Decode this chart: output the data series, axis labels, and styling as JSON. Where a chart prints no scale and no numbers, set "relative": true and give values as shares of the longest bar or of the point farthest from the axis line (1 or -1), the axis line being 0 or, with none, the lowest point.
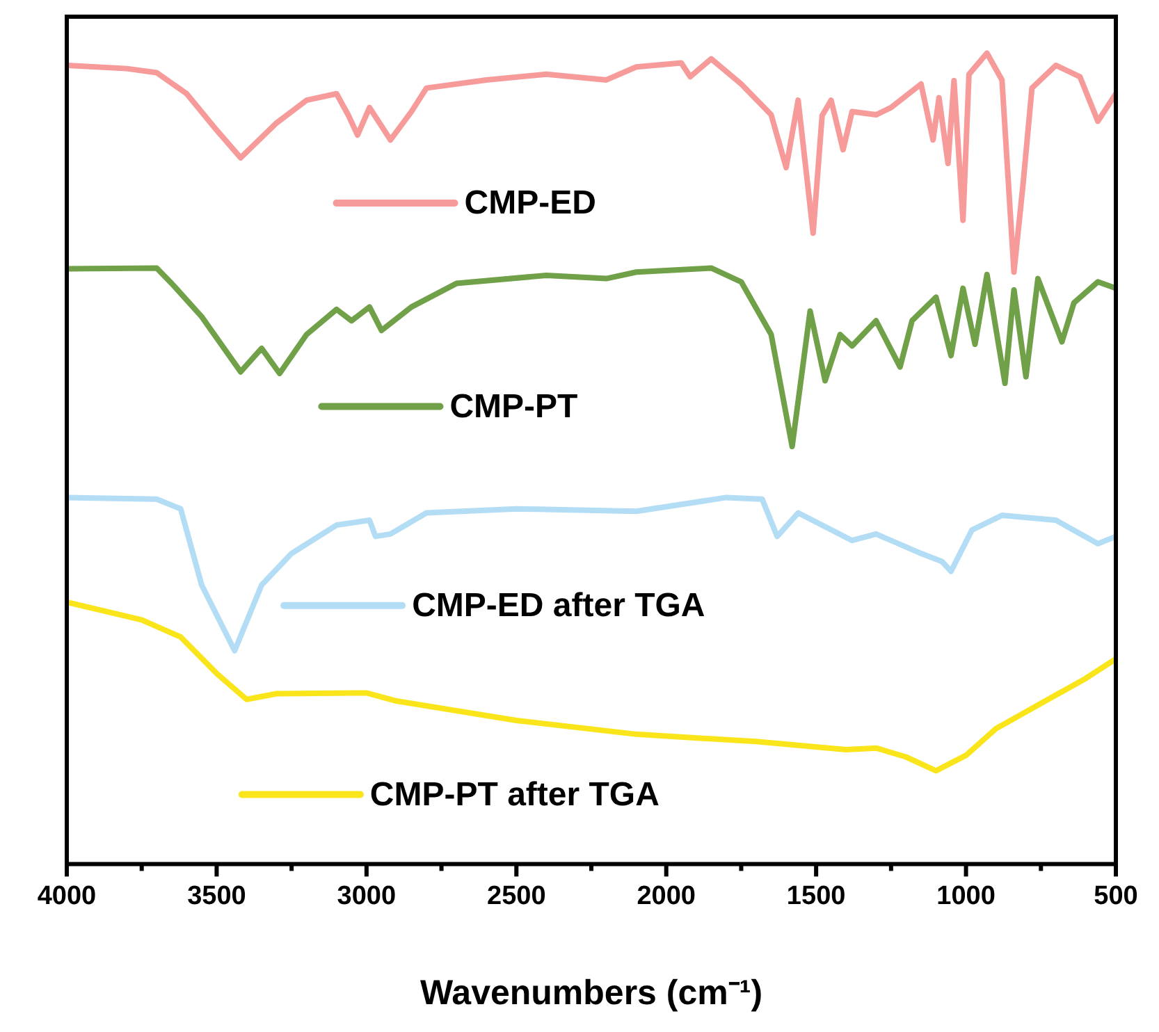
{
  "chart_data": {
    "type": "line",
    "xlabel": "Wavenumbers (cm⁻¹)",
    "relative": true,
    "xlim": [
      4000,
      500
    ],
    "xticks": [
      4000,
      {
        "value": 3750,
        "label": null
      },
      3500,
      {
        "value": 3250,
        "label": null
      },
      3000,
      {
        "value": 2750,
        "label": null
      },
      2500,
      {
        "value": 2250,
        "label": null
      },
      2000,
      {
        "value": 1750,
        "label": null
      },
      1500,
      {
        "value": 1250,
        "label": null
      },
      1000,
      {
        "value": 750,
        "label": null
      },
      500
    ],
    "grid": false,
    "legend": "center",
    "marker": "none",
    "line_style": "solid",
    "series": [
      {
        "name": "CMP-ED",
        "color": "#f79a9a",
        "x": [
          4000,
          3800,
          3700,
          3600,
          3500,
          3420,
          3300,
          3200,
          3100,
          3060,
          3030,
          2990,
          2920,
          2850,
          2800,
          2600,
          2400,
          2200,
          2100,
          1950,
          1920,
          1850,
          1750,
          1650,
          1600,
          1560,
          1510,
          1480,
          1450,
          1410,
          1380,
          1300,
          1250,
          1150,
          1110,
          1090,
          1060,
          1040,
          1010,
          990,
          930,
          880,
          840,
          810,
          780,
          700,
          620,
          560,
          500
        ],
        "values": [
          0.985,
          0.981,
          0.976,
          0.95,
          0.905,
          0.871,
          0.914,
          0.942,
          0.95,
          0.923,
          0.899,
          0.933,
          0.893,
          0.928,
          0.957,
          0.967,
          0.974,
          0.967,
          0.983,
          0.988,
          0.971,
          0.993,
          0.962,
          0.924,
          0.859,
          0.942,
          0.778,
          0.923,
          0.942,
          0.881,
          0.928,
          0.924,
          0.933,
          0.962,
          0.893,
          0.945,
          0.864,
          0.966,
          0.794,
          0.974,
          1,
          0.967,
          0.73,
          0.837,
          0.957,
          0.985,
          0.971,
          0.916,
          0.95
        ]
      },
      {
        "name": "CMP-PT",
        "color": "#70a047",
        "x": [
          4000,
          3700,
          3650,
          3550,
          3420,
          3350,
          3290,
          3200,
          3100,
          3050,
          2990,
          2950,
          2850,
          2700,
          2400,
          2200,
          2100,
          1850,
          1750,
          1650,
          1580,
          1520,
          1470,
          1420,
          1380,
          1300,
          1220,
          1180,
          1100,
          1050,
          1010,
          970,
          930,
          870,
          840,
          800,
          760,
          680,
          640,
          560,
          500
        ],
        "values": [
          0.734,
          0.735,
          0.716,
          0.675,
          0.607,
          0.636,
          0.605,
          0.653,
          0.684,
          0.67,
          0.687,
          0.658,
          0.687,
          0.716,
          0.726,
          0.722,
          0.73,
          0.735,
          0.718,
          0.653,
          0.515,
          0.682,
          0.596,
          0.653,
          0.639,
          0.67,
          0.613,
          0.67,
          0.699,
          0.627,
          0.71,
          0.641,
          0.727,
          0.593,
          0.708,
          0.601,
          0.722,
          0.644,
          0.692,
          0.718,
          0.71
        ]
      },
      {
        "name": "CMP-ED after TGA",
        "color": "#b3dcf5",
        "x": [
          4000,
          3700,
          3620,
          3550,
          3440,
          3350,
          3250,
          3100,
          2990,
          2970,
          2920,
          2800,
          2500,
          2100,
          1800,
          1680,
          1630,
          1560,
          1380,
          1300,
          1150,
          1080,
          1050,
          980,
          880,
          700,
          560,
          500
        ],
        "values": [
          0.452,
          0.45,
          0.438,
          0.344,
          0.263,
          0.344,
          0.383,
          0.418,
          0.424,
          0.404,
          0.407,
          0.433,
          0.438,
          0.435,
          0.452,
          0.45,
          0.404,
          0.433,
          0.399,
          0.407,
          0.383,
          0.373,
          0.361,
          0.412,
          0.43,
          0.424,
          0.395,
          0.404
        ]
      },
      {
        "name": "CMP-PT after TGA",
        "color": "#f9e51a",
        "x": [
          4000,
          3750,
          3620,
          3500,
          3400,
          3300,
          3000,
          2900,
          2500,
          2100,
          1700,
          1400,
          1300,
          1200,
          1100,
          1000,
          900,
          750,
          600,
          500
        ],
        "values": [
          0.323,
          0.301,
          0.28,
          0.235,
          0.203,
          0.21,
          0.211,
          0.201,
          0.177,
          0.16,
          0.151,
          0.141,
          0.143,
          0.132,
          0.115,
          0.134,
          0.167,
          0.198,
          0.229,
          0.253
        ]
      }
    ]
  }
}
